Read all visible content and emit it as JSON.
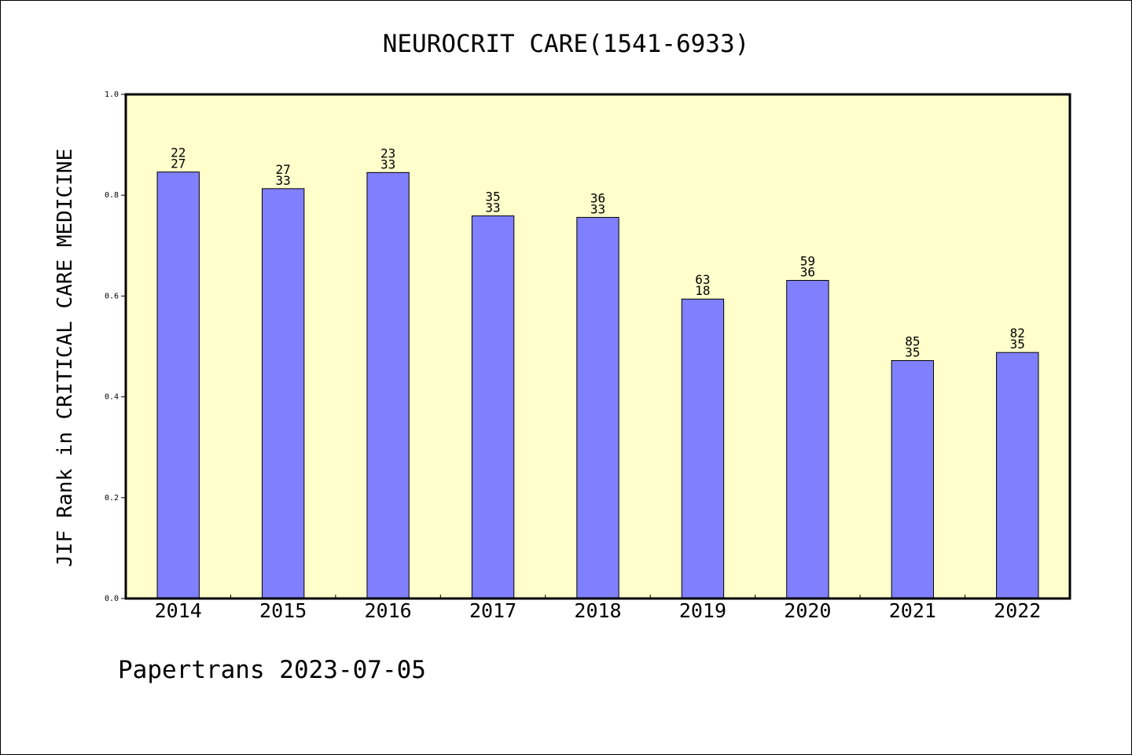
{
  "footer": {
    "text": "Papertrans 2023-07-05"
  },
  "colors": {
    "plot_background": "#ffffcc",
    "bar_fill": "#8080ff",
    "bar_stroke": "#000000",
    "axis": "#000000"
  },
  "chart_data": {
    "type": "bar",
    "title": "NEUROCRIT CARE(1541-6933)",
    "xlabel": "",
    "ylabel": "JIF Rank in CRITICAL CARE MEDICINE",
    "ylim": [
      0.0,
      1.0
    ],
    "yticks": [
      "0.0",
      "0.2",
      "0.4",
      "0.6",
      "0.8",
      "1.0"
    ],
    "grid": false,
    "categories": [
      "2014",
      "2015",
      "2016",
      "2017",
      "2018",
      "2019",
      "2020",
      "2021",
      "2022"
    ],
    "values": [
      0.846,
      0.813,
      0.845,
      0.759,
      0.756,
      0.594,
      0.631,
      0.472,
      0.488
    ],
    "labels": [
      {
        "top": "22",
        "bottom": "27"
      },
      {
        "top": "27",
        "bottom": "33"
      },
      {
        "top": "23",
        "bottom": "33"
      },
      {
        "top": "35",
        "bottom": "33"
      },
      {
        "top": "36",
        "bottom": "33"
      },
      {
        "top": "63",
        "bottom": "18"
      },
      {
        "top": "59",
        "bottom": "36"
      },
      {
        "top": "85",
        "bottom": "35"
      },
      {
        "top": "82",
        "bottom": "35"
      }
    ]
  }
}
